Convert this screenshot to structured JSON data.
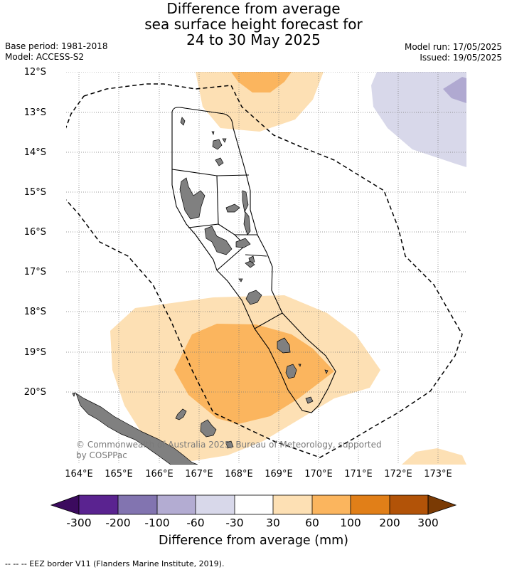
{
  "header": {
    "title_line1": "Difference from average",
    "title_line2": "sea surface height forecast for",
    "title_line3": "24 to 30 May 2025",
    "base_period": "Base period: 1981-2018",
    "model": "Model: ACCESS-S2",
    "model_run": "Model run: 17/05/2025",
    "issued": "Issued: 19/05/2025"
  },
  "map": {
    "region": "Vanuatu",
    "lat_labels": [
      "12°S",
      "13°S",
      "14°S",
      "15°S",
      "16°S",
      "17°S",
      "18°S",
      "19°S",
      "20°S"
    ],
    "lon_labels": [
      "164°E",
      "165°E",
      "166°E",
      "167°E",
      "168°E",
      "169°E",
      "170°E",
      "171°E",
      "172°E",
      "173°E"
    ],
    "copyright_line1": "© Commonwealth of Australia 2025, Bureau of Meteorology, supported",
    "copyright_line2": "by COSPPac",
    "colors": {
      "land": "#808080",
      "pos_30_60": "#fde0b4",
      "pos_60_100": "#fbb55e",
      "neg_60_30": "#d8d8ea",
      "neg_100_60": "#b0a9d1"
    }
  },
  "colorbar": {
    "tick_labels": [
      "-300",
      "-200",
      "-100",
      "-60",
      "-30",
      "30",
      "60",
      "100",
      "200",
      "300"
    ],
    "colors": [
      "#3b0a5e",
      "#5a2390",
      "#8274b0",
      "#b3acd2",
      "#d8d8ea",
      "#ffffff",
      "#fde0b4",
      "#fbb55e",
      "#e17f18",
      "#b25308",
      "#7a3a04"
    ],
    "title": "Difference from average (mm)"
  },
  "legend": {
    "eez_text": "-- -- -- EEZ border V11 (Flanders Marine Institute, 2019)."
  }
}
